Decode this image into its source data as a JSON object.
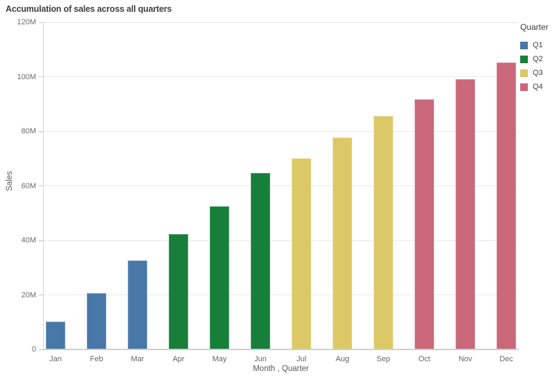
{
  "chart": {
    "title": "Accumulation of sales across all quarters",
    "y_axis": {
      "label": "Sales",
      "ticks": [
        {
          "label": "0",
          "value": 0
        },
        {
          "label": "20M",
          "value": 20
        },
        {
          "label": "40M",
          "value": 40
        },
        {
          "label": "60M",
          "value": 60
        },
        {
          "label": "80M",
          "value": 80
        },
        {
          "label": "100M",
          "value": 100
        },
        {
          "label": "120M",
          "value": 120
        }
      ],
      "max": 120
    },
    "x_axis": {
      "label": "Month , Quarter"
    },
    "legend": {
      "title": "Quarter",
      "items": [
        {
          "label": "Q1",
          "color": "#4878a8"
        },
        {
          "label": "Q2",
          "color": "#177f3a"
        },
        {
          "label": "Q3",
          "color": "#ddc868"
        },
        {
          "label": "Q4",
          "color": "#ca6779"
        }
      ]
    }
  },
  "chart_data": {
    "type": "bar",
    "title": "Accumulation of sales across all quarters",
    "xlabel": "Month , Quarter",
    "ylabel": "Sales",
    "ylim_millions": [
      0,
      120
    ],
    "grid": true,
    "legend_position": "top-right",
    "categories": [
      "Jan",
      "Feb",
      "Mar",
      "Apr",
      "May",
      "Jun",
      "Jul",
      "Aug",
      "Sep",
      "Oct",
      "Nov",
      "Dec"
    ],
    "values_millions": [
      10.2,
      20.7,
      32.5,
      42.3,
      52.6,
      64.8,
      70.0,
      77.7,
      85.6,
      91.6,
      99.0,
      105.2
    ],
    "quarter_of_month": [
      "Q1",
      "Q1",
      "Q1",
      "Q2",
      "Q2",
      "Q2",
      "Q3",
      "Q3",
      "Q3",
      "Q4",
      "Q4",
      "Q4"
    ],
    "series": [
      {
        "name": "Q1",
        "color": "#4878a8",
        "months": [
          "Jan",
          "Feb",
          "Mar"
        ],
        "values_millions": [
          10.2,
          20.7,
          32.5
        ]
      },
      {
        "name": "Q2",
        "color": "#177f3a",
        "months": [
          "Apr",
          "May",
          "Jun"
        ],
        "values_millions": [
          42.3,
          52.6,
          64.8
        ]
      },
      {
        "name": "Q3",
        "color": "#ddc868",
        "months": [
          "Jul",
          "Aug",
          "Sep"
        ],
        "values_millions": [
          70.0,
          77.7,
          85.6
        ]
      },
      {
        "name": "Q4",
        "color": "#ca6779",
        "months": [
          "Oct",
          "Nov",
          "Dec"
        ],
        "values_millions": [
          91.6,
          99.0,
          105.2
        ]
      }
    ]
  }
}
